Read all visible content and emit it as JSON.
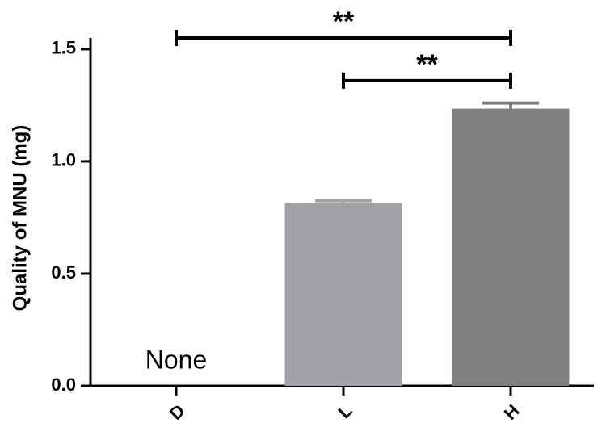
{
  "chart_data": {
    "type": "bar",
    "y_label": "Quality of MNU (mg)",
    "categories": [
      "D",
      "L",
      "H"
    ],
    "values": [
      null,
      0.815,
      1.235
    ],
    "errors": [
      null,
      0.01,
      0.025
    ],
    "colors": [
      "#a2a2a6",
      "#a2a2a6",
      "#808080"
    ],
    "ylim": [
      0,
      1.55
    ],
    "yticks": [
      {
        "value": 0,
        "label": "0.0"
      },
      0.5,
      {
        "value": 1,
        "label": "1.0"
      },
      1.5
    ],
    "annotations": [
      {
        "text": "None",
        "category": "D"
      }
    ],
    "significance": [
      {
        "from": "D",
        "to": "H",
        "label": "**",
        "y": 1.55
      },
      {
        "from": "L",
        "to": "H",
        "label": "**",
        "y": 1.36
      }
    ]
  }
}
